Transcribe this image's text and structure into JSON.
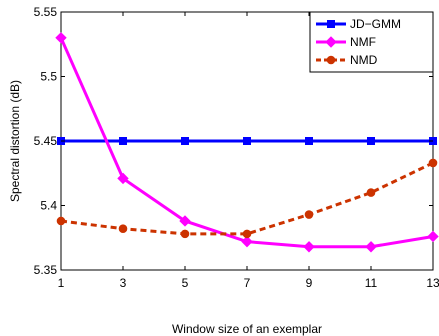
{
  "chart_data": {
    "type": "line",
    "x": [
      1,
      3,
      5,
      7,
      9,
      11,
      13
    ],
    "xticks": [
      "1",
      "3",
      "5",
      "7",
      "9",
      "11",
      "13"
    ],
    "yticks": [
      "5.35",
      "5.4",
      "5.45",
      "5.5",
      "5.55"
    ],
    "xlabel": "Window size of an exemplar",
    "ylabel": "Spectral distortion (dB)",
    "xlim": [
      1,
      13
    ],
    "ylim": [
      5.35,
      5.55
    ],
    "grid": false,
    "legend_position": "top-right",
    "series": [
      {
        "name": "JD−GMM",
        "values": [
          5.45,
          5.45,
          5.45,
          5.45,
          5.45,
          5.45,
          5.45
        ],
        "color": "#0000ff",
        "line_style": "solid",
        "marker": "square"
      },
      {
        "name": "NMF",
        "values": [
          5.53,
          5.421,
          5.388,
          5.372,
          5.368,
          5.368,
          5.376
        ],
        "color": "#ff00ff",
        "line_style": "solid",
        "marker": "diamond"
      },
      {
        "name": "NMD",
        "values": [
          5.388,
          5.382,
          5.378,
          5.378,
          5.393,
          5.41,
          5.433
        ],
        "color": "#cc3300",
        "line_style": "dashed",
        "marker": "circle"
      }
    ]
  }
}
